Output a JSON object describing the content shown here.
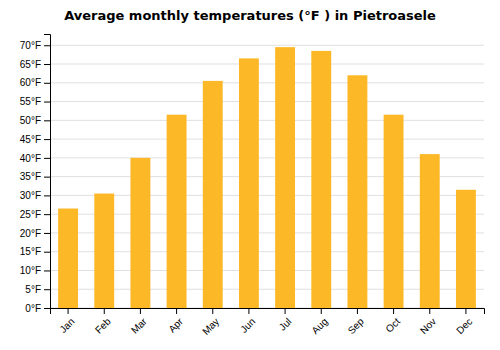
{
  "chart_data": {
    "type": "bar",
    "title": "Average monthly temperatures (°F ) in Pietroasele",
    "categories": [
      "Jan",
      "Feb",
      "Mar",
      "Apr",
      "May",
      "Jun",
      "Jul",
      "Aug",
      "Sep",
      "Oct",
      "Nov",
      "Dec"
    ],
    "values": [
      26.5,
      30.5,
      40.0,
      51.5,
      60.5,
      66.5,
      69.5,
      68.5,
      62.0,
      51.5,
      41.0,
      31.5
    ],
    "color": "#FDB827",
    "ylim": [
      0,
      73
    ],
    "yticks": [
      {
        "value": 0,
        "label": "0°F"
      },
      {
        "value": 5,
        "label": "5°F"
      },
      {
        "value": 10,
        "label": "10°F"
      },
      {
        "value": 15,
        "label": "15°F"
      },
      {
        "value": 20,
        "label": "20°F"
      },
      {
        "value": 25,
        "label": "25°F"
      },
      {
        "value": 30,
        "label": "30°F"
      },
      {
        "value": 35,
        "label": "35°F"
      },
      {
        "value": 40,
        "label": "40°F"
      },
      {
        "value": 45,
        "label": "45°F"
      },
      {
        "value": 50,
        "label": "50°F"
      },
      {
        "value": 55,
        "label": "55°F"
      },
      {
        "value": 60,
        "label": "60°F"
      },
      {
        "value": 65,
        "label": "65°F"
      },
      {
        "value": 70,
        "label": "70°F"
      }
    ],
    "grid": true
  }
}
